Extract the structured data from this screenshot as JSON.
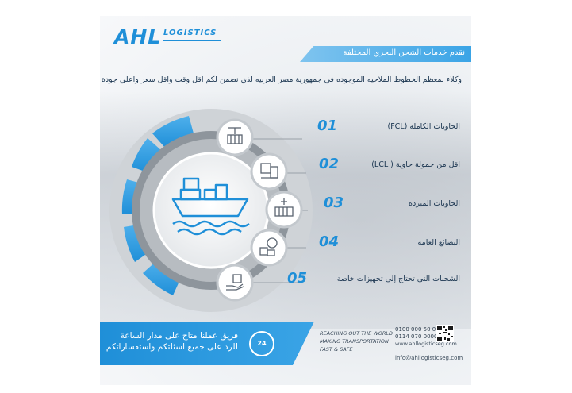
{
  "brand": {
    "name_main": "AHL",
    "name_sub": "LOGISTICS"
  },
  "header": {
    "ribbon_text": "نقدم خدمات الشحن البحري المختلفة",
    "subtitle": "وكلاء لمعظم الخطوط الملاحيه الموجوده في جمهورية مصر العربيه لذي نضمن لكم اقل وقت واقل سعر واعلي جودة"
  },
  "services": [
    {
      "number": "01",
      "label": "الحاويات الكاملة (FCL)",
      "icon": "crane-container-icon"
    },
    {
      "number": "02",
      "label": "اقل من حمولة حاوية ( LCL)",
      "icon": "box-forklift-icon"
    },
    {
      "number": "03",
      "label": "الحاويات المبردة",
      "icon": "reefer-container-icon"
    },
    {
      "number": "04",
      "label": "البضائع العامة",
      "icon": "gear-boxes-icon"
    },
    {
      "number": "05",
      "label": "الشحنات التى تحتاج إلى تجهيزات خاصة",
      "icon": "hand-package-icon"
    }
  ],
  "footer": {
    "line1": "فريق عملنا متاح على مدار الساعة",
    "line2": "للرد على جميع اسئلتكم واستفساراتكم",
    "badge": "24",
    "slogan1": "REACHING OUT THE WORLD",
    "slogan2": "MAKING TRANSPORTATION",
    "slogan3": "FAST & SAFE",
    "phone1": "0100 000 50 05",
    "phone2": "0114 070 0000",
    "website": "www.ahllogisticseg.com",
    "email": "info@ahllogisticseg.com"
  },
  "colors": {
    "accent": "#1f8fd8",
    "dark_text": "#1a3550",
    "ring_light": "#d7dadd"
  }
}
